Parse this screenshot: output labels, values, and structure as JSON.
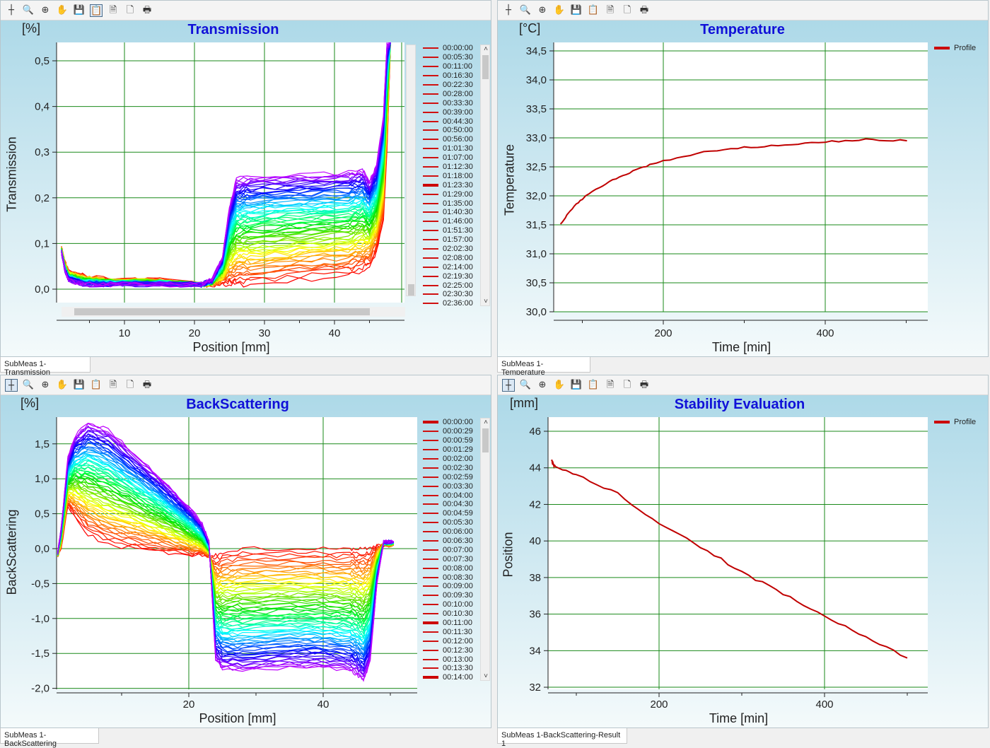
{
  "toolbar_icons": [
    "crosshair-icon",
    "zoom-plus-minus-icon",
    "zoom-icon",
    "pan-hand-icon",
    "save-icon",
    "copy-icon",
    "export-icon",
    "print-preview-icon",
    "print-icon"
  ],
  "tabs": [
    "SubMeas 1-Transmission",
    "SubMeas 1-Temperature",
    "SubMeas 1-BackScattering",
    "SubMeas 1-BackScattering-Result 1"
  ],
  "chart_data": [
    {
      "type": "line",
      "title": "Transmission",
      "unit": "[%]",
      "ylabel": "Transmission",
      "xlabel": "Position [mm]",
      "xlim": [
        0,
        50
      ],
      "ylim": [
        0,
        0.54
      ],
      "yticks": [
        {
          "v": 0,
          "l": "0,0"
        },
        {
          "v": 0.1,
          "l": "0,1"
        },
        {
          "v": 0.2,
          "l": "0,2"
        },
        {
          "v": 0.3,
          "l": "0,3"
        },
        {
          "v": 0.4,
          "l": "0,4"
        },
        {
          "v": 0.5,
          "l": "0,5"
        }
      ],
      "xticks": [
        {
          "v": 10,
          "l": "10"
        },
        {
          "v": 20,
          "l": "20"
        },
        {
          "v": 30,
          "l": "30"
        },
        {
          "v": 40,
          "l": "40"
        }
      ],
      "legend": [
        "00:00:00",
        "00:05:30",
        "00:11:00",
        "00:16:30",
        "00:22:30",
        "00:28:00",
        "00:33:30",
        "00:39:00",
        "00:44:30",
        "00:50:00",
        "00:56:00",
        "01:01:30",
        "01:07:00",
        "01:12:30",
        "01:18:00",
        "01:23:30",
        "01:29:00",
        "01:35:00",
        "01:40:30",
        "01:46:00",
        "01:51:30",
        "01:57:00",
        "02:02:30",
        "02:08:00",
        "02:14:00",
        "02:19:30",
        "02:25:00",
        "02:30:30",
        "02:36:00"
      ],
      "x": [
        1,
        1.5,
        2,
        4,
        8,
        15,
        21,
        22.5,
        24,
        25,
        26,
        28,
        35,
        42,
        44,
        45,
        46,
        47,
        47.5,
        48
      ],
      "series": [
        {
          "name": "first (red)",
          "values": [
            0.09,
            0.06,
            0.04,
            0.03,
            0.02,
            0.02,
            0.01,
            0.01,
            0.01,
            0.01,
            0.01,
            0.01,
            0.02,
            0.03,
            0.04,
            0.05,
            0.08,
            0.15,
            0.3,
            0.54
          ]
        },
        {
          "name": "last (violet)",
          "values": [
            0.08,
            0.04,
            0.02,
            0.01,
            0.01,
            0.01,
            0.01,
            0.02,
            0.07,
            0.18,
            0.24,
            0.245,
            0.25,
            0.255,
            0.26,
            0.235,
            0.27,
            0.38,
            0.54,
            0.54
          ]
        }
      ]
    },
    {
      "type": "line",
      "title": "Temperature",
      "unit": "[°C]",
      "ylabel": "Temperature",
      "xlabel": "Time [min]",
      "xlim": [
        0,
        530
      ],
      "ylim": [
        30,
        34.7
      ],
      "yticks": [
        {
          "v": 30,
          "l": "30,0"
        },
        {
          "v": 30.5,
          "l": "30,5"
        },
        {
          "v": 31,
          "l": "31,0"
        },
        {
          "v": 31.5,
          "l": "31,5"
        },
        {
          "v": 32,
          "l": "32,0"
        },
        {
          "v": 32.5,
          "l": "32,5"
        },
        {
          "v": 33,
          "l": "33,0"
        },
        {
          "v": 33.5,
          "l": "33,5"
        },
        {
          "v": 34,
          "l": "34,0"
        },
        {
          "v": 34.5,
          "l": "34,5"
        }
      ],
      "xticks": [
        {
          "v": 200,
          "l": "200"
        },
        {
          "v": 400,
          "l": "400"
        }
      ],
      "legend": [
        "Profile"
      ],
      "series": [
        {
          "name": "Profile",
          "x": [
            73,
            85,
            100,
            125,
            150,
            175,
            200,
            250,
            300,
            350,
            400,
            450,
            501
          ],
          "values": [
            31.5,
            31.75,
            31.95,
            32.18,
            32.35,
            32.5,
            32.6,
            32.75,
            32.83,
            32.88,
            32.93,
            32.97,
            32.95
          ]
        }
      ]
    },
    {
      "type": "line",
      "title": "BackScattering",
      "unit": "[%]",
      "ylabel": "BackScattering",
      "xlabel": "Position [mm]",
      "xlim": [
        0,
        53
      ],
      "ylim": [
        -2,
        1.9
      ],
      "yticks": [
        {
          "v": -2,
          "l": "-2,0"
        },
        {
          "v": -1.5,
          "l": "-1,5"
        },
        {
          "v": -1,
          "l": "-1,0"
        },
        {
          "v": -0.5,
          "l": "-0,5"
        },
        {
          "v": 0,
          "l": "0,0"
        },
        {
          "v": 0.5,
          "l": "0,5"
        },
        {
          "v": 1,
          "l": "1,0"
        },
        {
          "v": 1.5,
          "l": "1,5"
        }
      ],
      "xticks": [
        {
          "v": 20,
          "l": "20"
        },
        {
          "v": 40,
          "l": "40"
        }
      ],
      "legend": [
        "00:00:00",
        "00:00:29",
        "00:00:59",
        "00:01:29",
        "00:02:00",
        "00:02:30",
        "00:02:59",
        "00:03:30",
        "00:04:00",
        "00:04:30",
        "00:04:59",
        "00:05:30",
        "00:06:00",
        "00:06:30",
        "00:07:00",
        "00:07:30",
        "00:08:00",
        "00:08:30",
        "00:09:00",
        "00:09:30",
        "00:10:00",
        "00:10:30",
        "00:11:00",
        "00:11:30",
        "00:12:00",
        "00:12:30",
        "00:13:00",
        "00:13:30",
        "00:14:00"
      ],
      "x": [
        0.5,
        1,
        2,
        3,
        5,
        8,
        12,
        16,
        20,
        22,
        23,
        24,
        25,
        28,
        35,
        40,
        44,
        45,
        46,
        47,
        48,
        49,
        50.5
      ],
      "series": [
        {
          "name": "first (red)",
          "values": [
            -0.1,
            0,
            0.6,
            0.45,
            0.2,
            0.05,
            0,
            -0.05,
            -0.1,
            -0.1,
            -0.12,
            -0.1,
            -0.05,
            0,
            0,
            0,
            0,
            0,
            0,
            0,
            0.05,
            0.05,
            0.05
          ]
        },
        {
          "name": "last (violet)",
          "values": [
            -0.05,
            0.3,
            1.3,
            1.6,
            1.8,
            1.7,
            1.35,
            1.0,
            0.6,
            0.35,
            0.1,
            -1.6,
            -1.72,
            -1.75,
            -1.7,
            -1.7,
            -1.75,
            -1.8,
            -1.9,
            -1.6,
            -0.5,
            0.1,
            0.1
          ]
        }
      ]
    },
    {
      "type": "line",
      "title": "Stability Evaluation",
      "unit": "[mm]",
      "ylabel": "Position",
      "xlabel": "Time [min]",
      "xlim": [
        0,
        530
      ],
      "ylim": [
        32,
        46.8
      ],
      "yticks": [
        {
          "v": 32,
          "l": "32"
        },
        {
          "v": 34,
          "l": "34"
        },
        {
          "v": 36,
          "l": "36"
        },
        {
          "v": 38,
          "l": "38"
        },
        {
          "v": 40,
          "l": "40"
        },
        {
          "v": 42,
          "l": "42"
        },
        {
          "v": 44,
          "l": "44"
        },
        {
          "v": 46,
          "l": "46"
        }
      ],
      "xticks": [
        {
          "v": 200,
          "l": "200"
        },
        {
          "v": 400,
          "l": "400"
        }
      ],
      "legend": [
        "Profile"
      ],
      "series": [
        {
          "name": "Profile",
          "x": [
            70,
            72,
            75,
            100,
            150,
            200,
            250,
            300,
            350,
            400,
            450,
            500
          ],
          "values": [
            44.4,
            44.2,
            44.0,
            43.6,
            42.6,
            40.9,
            39.7,
            38.3,
            37.1,
            35.9,
            34.7,
            33.6
          ]
        }
      ]
    }
  ]
}
